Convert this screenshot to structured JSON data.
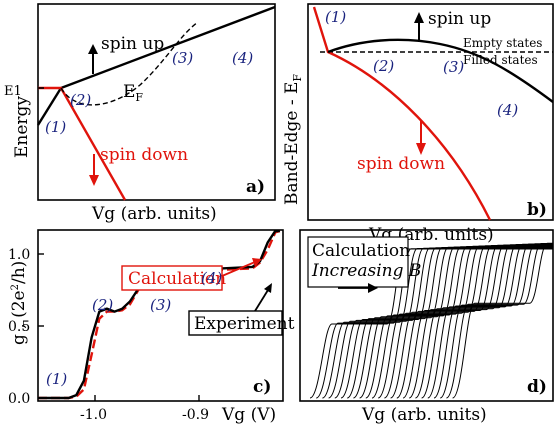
{
  "panels": {
    "a": {
      "label": "a)",
      "xlabel": "Vg (arb. units)",
      "ylabel": "Energy",
      "level_label": "E1",
      "fermi_label": "E",
      "fermi_sub": "F",
      "spin_up": "spin up",
      "spin_down": "spin down",
      "markers": [
        "(1)",
        "(2)",
        "(3)",
        "(4)"
      ]
    },
    "b": {
      "label": "b)",
      "xlabel": "Vg (arb. units)",
      "ylabel": "Band-Edge - E",
      "ylabel_sub": "F",
      "spin_up": "spin up",
      "spin_down": "spin down",
      "empty": "Empty states",
      "filled": "Filled states",
      "markers": [
        "(1)",
        "(2)",
        "(3)",
        "(4)"
      ]
    },
    "c": {
      "label": "c)",
      "xlabel": "Vg (V)",
      "ylabel": "g , (2e",
      "ylabel_sup": "2",
      "ylabel_end": "/h)",
      "yticks": [
        "0.0",
        "0.5",
        "1.0"
      ],
      "xticks": [
        "-1.0",
        "-0.9"
      ],
      "calculation": "Calculation",
      "experiment": "Experiment",
      "markers": [
        "(1)",
        "(2)",
        "(3)",
        "(4)"
      ]
    },
    "d": {
      "label": "d)",
      "xlabel": "Vg (arb. units)",
      "title1": "Calculation",
      "title2": "Increasing B"
    }
  },
  "chart_data": [
    {
      "type": "line",
      "panel": "c",
      "xlabel": "Vg (V)",
      "ylabel": "g , (2e2/h)",
      "xlim": [
        -1.02,
        -0.86
      ],
      "ylim": [
        0,
        1.2
      ],
      "series": [
        {
          "name": "Experiment",
          "x": [
            -1.02,
            -1.0,
            -0.995,
            -0.99,
            -0.985,
            -0.98,
            -0.975,
            -0.97,
            -0.965,
            -0.96,
            -0.955,
            -0.95,
            -0.945,
            -0.94,
            -0.935,
            -0.93,
            -0.925,
            -0.92,
            -0.9,
            -0.88,
            -0.875,
            -0.87,
            -0.865,
            -0.862
          ],
          "y": [
            0.0,
            0.0,
            0.02,
            0.12,
            0.42,
            0.6,
            0.62,
            0.6,
            0.62,
            0.67,
            0.75,
            0.83,
            0.88,
            0.9,
            0.9,
            0.9,
            0.9,
            0.9,
            0.9,
            0.91,
            0.95,
            1.08,
            1.17,
            1.2
          ]
        },
        {
          "name": "Calculation",
          "x": [
            -1.02,
            -1.0,
            -0.995,
            -0.99,
            -0.985,
            -0.98,
            -0.975,
            -0.97,
            -0.965,
            -0.96,
            -0.955,
            -0.95,
            -0.945,
            -0.94,
            -0.935,
            -0.93,
            -0.925,
            -0.92,
            -0.9,
            -0.88,
            -0.875,
            -0.87,
            -0.865,
            -0.862
          ],
          "y": [
            0.0,
            0.0,
            0.01,
            0.06,
            0.3,
            0.55,
            0.6,
            0.6,
            0.61,
            0.65,
            0.74,
            0.84,
            0.89,
            0.9,
            0.9,
            0.9,
            0.9,
            0.89,
            0.89,
            0.9,
            0.94,
            1.03,
            1.15,
            1.2
          ]
        }
      ]
    }
  ]
}
